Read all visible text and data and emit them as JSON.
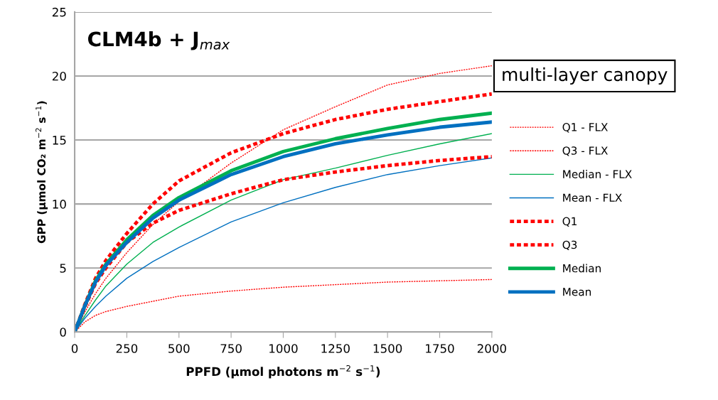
{
  "chart_data": {
    "type": "line",
    "xlabel": "PPFD (µmol photons m$^{−2}$ s$^{−1}$)",
    "ylabel": "GPP (µmol CO₂ m$^{−2}$ s$^{−1}$)",
    "annotations": [
      "CLM4b + J$_{max}$",
      "multi-layer canopy"
    ],
    "x": [
      0,
      50,
      100,
      150,
      250,
      375,
      500,
      750,
      1000,
      1250,
      1500,
      1750,
      2000
    ],
    "xlim": [
      0,
      2000
    ],
    "xticks": [
      0,
      250,
      500,
      750,
      1000,
      1250,
      1500,
      1750,
      2000
    ],
    "ylim": [
      0,
      25
    ],
    "yticks": [
      0,
      5,
      10,
      15,
      20,
      25
    ],
    "grid": "y",
    "legend": "right",
    "series": [
      {
        "name": "Q1 - FLX",
        "color": "#ff0000",
        "line_style": "dotted",
        "values": [
          0,
          0.8,
          1.3,
          1.6,
          2.0,
          2.4,
          2.8,
          3.2,
          3.5,
          3.7,
          3.9,
          4.0,
          4.1
        ]
      },
      {
        "name": "Q3 - FLX",
        "color": "#ff0000",
        "line_style": "dotted",
        "values": [
          0,
          1.6,
          3.0,
          4.2,
          6.2,
          8.4,
          10.2,
          13.2,
          15.8,
          17.6,
          19.3,
          20.2,
          20.8
        ]
      },
      {
        "name": "Median - FLX",
        "color": "#00b050",
        "line_style": "solid",
        "values": [
          0,
          1.3,
          2.5,
          3.6,
          5.3,
          7.0,
          8.2,
          10.3,
          11.9,
          12.8,
          13.8,
          14.7,
          15.5
        ]
      },
      {
        "name": "Mean - FLX",
        "color": "#0070c0",
        "line_style": "solid",
        "values": [
          0,
          1.1,
          2.0,
          2.8,
          4.2,
          5.5,
          6.6,
          8.6,
          10.1,
          11.3,
          12.3,
          13.0,
          13.6
        ]
      },
      {
        "name": "Q1",
        "color": "#ff0000",
        "line_style": "dashed",
        "values": [
          0,
          2.0,
          3.8,
          5.0,
          7.0,
          8.5,
          9.5,
          10.8,
          11.9,
          12.5,
          13.0,
          13.4,
          13.7
        ]
      },
      {
        "name": "Q3",
        "color": "#ff0000",
        "line_style": "dashed",
        "values": [
          0,
          2.2,
          4.2,
          5.6,
          7.7,
          10.0,
          11.8,
          14.0,
          15.5,
          16.6,
          17.4,
          18.0,
          18.6
        ]
      },
      {
        "name": "Median",
        "color": "#00b050",
        "line_style": "solid",
        "values": [
          0,
          2.1,
          4.0,
          5.3,
          7.2,
          9.1,
          10.5,
          12.6,
          14.1,
          15.1,
          15.9,
          16.6,
          17.1
        ]
      },
      {
        "name": "Mean",
        "color": "#0070c0",
        "line_style": "solid",
        "values": [
          0,
          2.1,
          3.9,
          5.2,
          7.0,
          8.9,
          10.3,
          12.3,
          13.7,
          14.7,
          15.4,
          16.0,
          16.4
        ]
      }
    ]
  }
}
